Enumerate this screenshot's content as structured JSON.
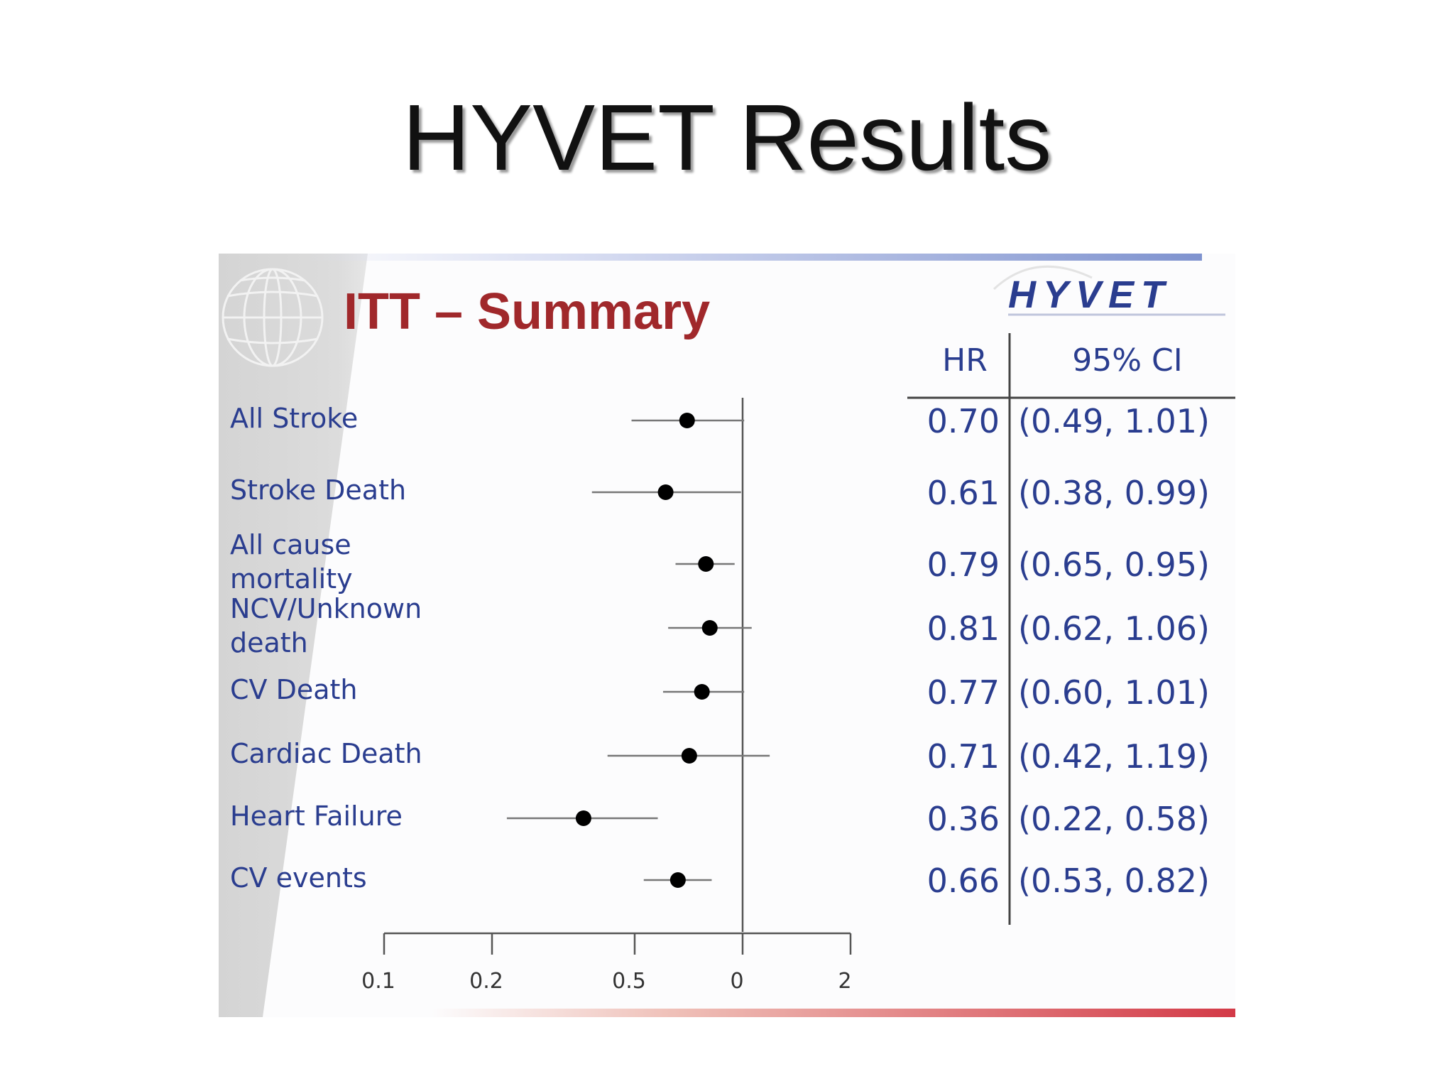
{
  "slide": {
    "title": "HYVET Results"
  },
  "panel": {
    "heading": "ITT – Summary",
    "logo": {
      "wordmark": "HYVET",
      "accent_color": "#e0252b",
      "color": "#2a3d8f"
    },
    "heading_color": "#a0282b",
    "text_color": "#2a3d8f"
  },
  "chart_data": {
    "type": "forest",
    "xscale": "log",
    "xlim": [
      0.1,
      2
    ],
    "tick_labels": [
      "0.1",
      "0.2",
      "0.5",
      "0",
      "2"
    ],
    "column_headers": {
      "hr": "HR",
      "ci": "95% CI"
    },
    "rows": [
      {
        "label_lines": [
          "All Stroke"
        ],
        "hr": 0.7,
        "lo": 0.49,
        "hi": 1.01,
        "hr_text": "0.70",
        "ci_text": "(0.49, 1.01)"
      },
      {
        "label_lines": [
          "Stroke Death"
        ],
        "hr": 0.61,
        "lo": 0.38,
        "hi": 0.99,
        "hr_text": "0.61",
        "ci_text": "(0.38, 0.99)"
      },
      {
        "label_lines": [
          "All cause",
          "mortality"
        ],
        "hr": 0.79,
        "lo": 0.65,
        "hi": 0.95,
        "hr_text": "0.79",
        "ci_text": "(0.65, 0.95)"
      },
      {
        "label_lines": [
          "NCV/Unknown",
          "death"
        ],
        "hr": 0.81,
        "lo": 0.62,
        "hi": 1.06,
        "hr_text": "0.81",
        "ci_text": "(0.62, 1.06)"
      },
      {
        "label_lines": [
          "CV Death"
        ],
        "hr": 0.77,
        "lo": 0.6,
        "hi": 1.01,
        "hr_text": "0.77",
        "ci_text": "(0.60, 1.01)"
      },
      {
        "label_lines": [
          "Cardiac Death"
        ],
        "hr": 0.71,
        "lo": 0.42,
        "hi": 1.19,
        "hr_text": "0.71",
        "ci_text": "(0.42, 1.19)"
      },
      {
        "label_lines": [
          "Heart Failure"
        ],
        "hr": 0.36,
        "lo": 0.22,
        "hi": 0.58,
        "hr_text": "0.36",
        "ci_text": "(0.22, 0.58)"
      },
      {
        "label_lines": [
          "CV events"
        ],
        "hr": 0.66,
        "lo": 0.53,
        "hi": 0.82,
        "hr_text": "0.66",
        "ci_text": "(0.53, 0.82)"
      }
    ]
  }
}
